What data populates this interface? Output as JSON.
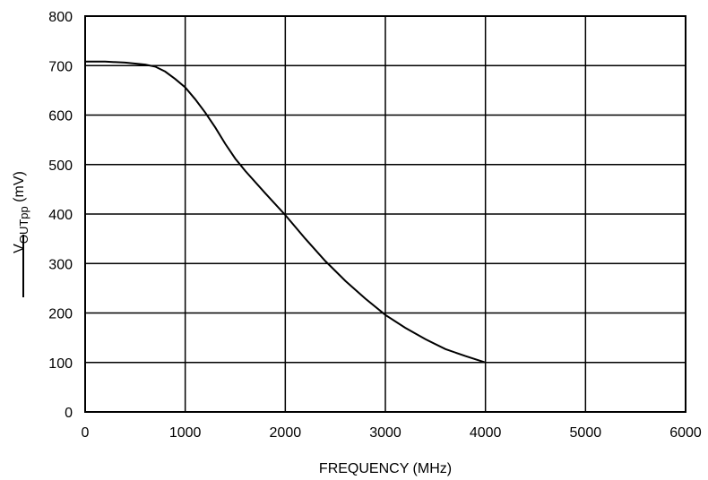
{
  "chart_data": {
    "type": "line",
    "title": "",
    "xlabel": "FREQUENCY (MHz)",
    "ylabel": {
      "main": "V",
      "subscript": "OUTpp",
      "unit": " (mV)"
    },
    "xlim": [
      0,
      6000
    ],
    "ylim": [
      0,
      800
    ],
    "xticks": [
      0,
      1000,
      2000,
      3000,
      4000,
      5000,
      6000
    ],
    "yticks": [
      0,
      100,
      200,
      300,
      400,
      500,
      600,
      700,
      800
    ],
    "grid": true,
    "legend": "left",
    "colors": {
      "line": "#000000",
      "grid": "#000000"
    },
    "series": [
      {
        "x": [
          0,
          200,
          400,
          600,
          700,
          800,
          900,
          1000,
          1100,
          1200,
          1300,
          1400,
          1500,
          1600,
          1800,
          2000,
          2200,
          2400,
          2600,
          2800,
          3000,
          3200,
          3400,
          3600,
          3800,
          4000
        ],
        "y": [
          708,
          708,
          706,
          702,
          698,
          688,
          673,
          656,
          632,
          605,
          575,
          542,
          512,
          487,
          442,
          398,
          350,
          305,
          265,
          229,
          196,
          170,
          147,
          127,
          113,
          100
        ]
      }
    ]
  }
}
